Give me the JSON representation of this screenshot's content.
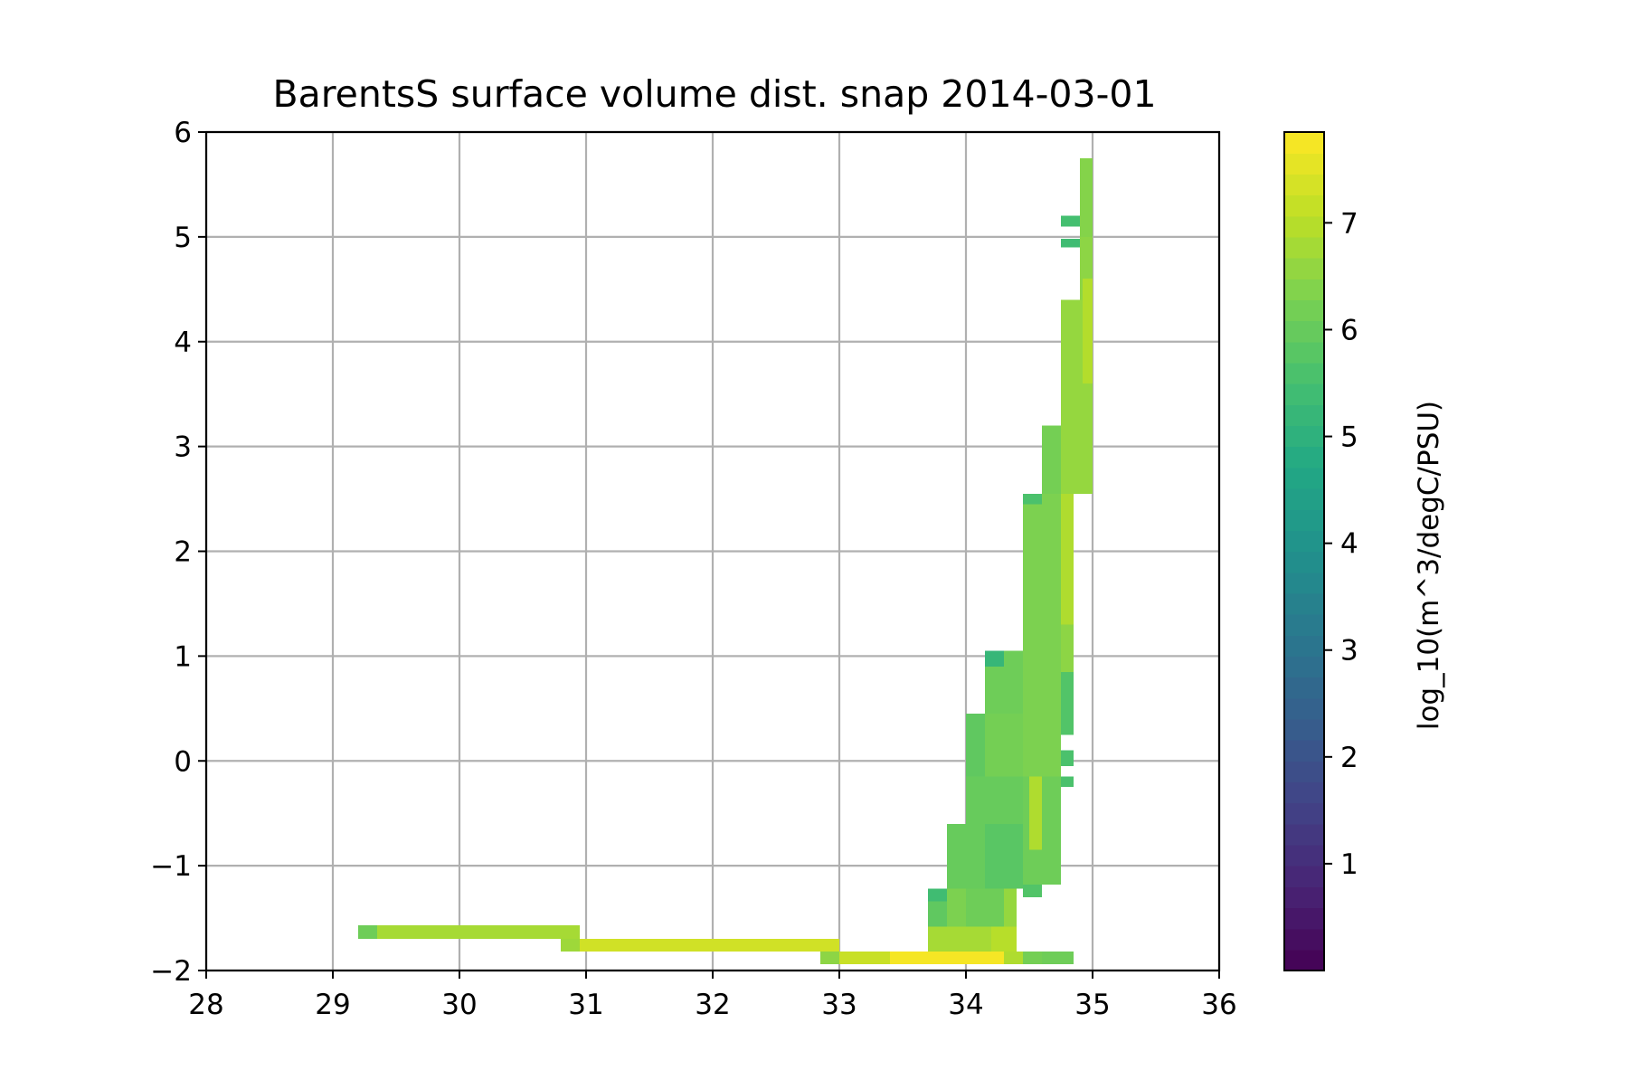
{
  "chart_data": {
    "type": "heatmap",
    "title": "BarentsS surface volume dist. snap 2014-03-01",
    "xlabel": "",
    "ylabel": "",
    "xlim": [
      28,
      36
    ],
    "ylim": [
      -2,
      6
    ],
    "x_ticks": [
      28,
      29,
      30,
      31,
      32,
      33,
      34,
      35,
      36
    ],
    "x_tick_labels": [
      "28",
      "29",
      "30",
      "31",
      "32",
      "33",
      "34",
      "35",
      "36"
    ],
    "y_ticks": [
      -2,
      -1,
      0,
      1,
      2,
      3,
      4,
      5,
      6
    ],
    "y_tick_labels": [
      "−2",
      "−1",
      "0",
      "1",
      "2",
      "3",
      "4",
      "5",
      "6"
    ],
    "grid": true,
    "grid_color": "#b0b0b0",
    "colormap": "viridis",
    "colorbar": {
      "label": "log_10(m^3/degC/PSU)",
      "range": [
        0,
        7.85
      ],
      "ticks": [
        1,
        2,
        3,
        4,
        5,
        6,
        7
      ],
      "tick_labels": [
        "1",
        "2",
        "3",
        "4",
        "5",
        "6",
        "7"
      ]
    },
    "cells": [
      {
        "s": [
          29.2,
          29.35
        ],
        "t": [
          -1.7,
          -1.57
        ],
        "v": 6.1
      },
      {
        "s": [
          29.35,
          30.95
        ],
        "t": [
          -1.7,
          -1.57
        ],
        "v": 6.8
      },
      {
        "s": [
          30.8,
          30.95
        ],
        "t": [
          -1.82,
          -1.7
        ],
        "v": 6.7
      },
      {
        "s": [
          30.95,
          33.0
        ],
        "t": [
          -1.82,
          -1.7
        ],
        "v": 7.3
      },
      {
        "s": [
          32.85,
          33.0
        ],
        "t": [
          -1.94,
          -1.82
        ],
        "v": 6.5
      },
      {
        "s": [
          33.0,
          33.4
        ],
        "t": [
          -1.94,
          -1.82
        ],
        "v": 7.2
      },
      {
        "s": [
          33.4,
          34.3
        ],
        "t": [
          -1.94,
          -1.82
        ],
        "v": 7.75
      },
      {
        "s": [
          34.3,
          34.45
        ],
        "t": [
          -1.94,
          -1.82
        ],
        "v": 6.9
      },
      {
        "s": [
          34.45,
          34.6
        ],
        "t": [
          -1.94,
          -1.82
        ],
        "v": 6.2
      },
      {
        "s": [
          34.6,
          34.85
        ],
        "t": [
          -1.94,
          -1.82
        ],
        "v": 6.1
      },
      {
        "s": [
          33.7,
          34.4
        ],
        "t": [
          -1.82,
          -1.58
        ],
        "v": 6.8
      },
      {
        "s": [
          34.2,
          34.4
        ],
        "t": [
          -1.82,
          -1.58
        ],
        "v": 7.0
      },
      {
        "s": [
          33.7,
          33.85
        ],
        "t": [
          -1.58,
          -1.22
        ],
        "v": 5.9
      },
      {
        "s": [
          33.85,
          34.0
        ],
        "t": [
          -1.58,
          -1.22
        ],
        "v": 6.3
      },
      {
        "s": [
          34.0,
          34.3
        ],
        "t": [
          -1.58,
          -1.22
        ],
        "v": 6.1
      },
      {
        "s": [
          34.3,
          34.4
        ],
        "t": [
          -1.58,
          -1.22
        ],
        "v": 6.6
      },
      {
        "s": [
          33.7,
          33.85
        ],
        "t": [
          -1.34,
          -1.22
        ],
        "v": 5.4
      },
      {
        "s": [
          33.85,
          34.45
        ],
        "t": [
          -1.22,
          -0.6
        ],
        "v": 6.0
      },
      {
        "s": [
          34.15,
          34.45
        ],
        "t": [
          -1.22,
          -0.6
        ],
        "v": 5.8
      },
      {
        "s": [
          34.45,
          34.6
        ],
        "t": [
          -1.3,
          -1.18
        ],
        "v": 5.7
      },
      {
        "s": [
          34.45,
          34.75
        ],
        "t": [
          -1.18,
          -0.15
        ],
        "v": 6.1
      },
      {
        "s": [
          34.5,
          34.6
        ],
        "t": [
          -0.85,
          -0.15
        ],
        "v": 6.9
      },
      {
        "s": [
          34.0,
          34.45
        ],
        "t": [
          -0.6,
          -0.15
        ],
        "v": 6.0
      },
      {
        "s": [
          34.0,
          34.15
        ],
        "t": [
          -0.15,
          0.45
        ],
        "v": 5.9
      },
      {
        "s": [
          34.15,
          34.45
        ],
        "t": [
          -0.15,
          0.45
        ],
        "v": 6.2
      },
      {
        "s": [
          34.45,
          34.75
        ],
        "t": [
          -0.15,
          0.45
        ],
        "v": 6.3
      },
      {
        "s": [
          34.15,
          34.45
        ],
        "t": [
          0.45,
          1.05
        ],
        "v": 6.1
      },
      {
        "s": [
          34.15,
          34.3
        ],
        "t": [
          0.9,
          1.05
        ],
        "v": 5.2
      },
      {
        "s": [
          34.45,
          34.75
        ],
        "t": [
          0.45,
          1.3
        ],
        "v": 6.3
      },
      {
        "s": [
          34.75,
          34.85
        ],
        "t": [
          -0.25,
          -0.15
        ],
        "v": 5.6
      },
      {
        "s": [
          34.75,
          34.85
        ],
        "t": [
          -0.05,
          0.1
        ],
        "v": 5.6
      },
      {
        "s": [
          34.75,
          34.85
        ],
        "t": [
          0.25,
          0.85
        ],
        "v": 5.7
      },
      {
        "s": [
          34.75,
          34.85
        ],
        "t": [
          0.85,
          1.3
        ],
        "v": 6.5
      },
      {
        "s": [
          34.45,
          34.75
        ],
        "t": [
          1.3,
          2.55
        ],
        "v": 6.3
      },
      {
        "s": [
          34.75,
          34.85
        ],
        "t": [
          1.3,
          2.55
        ],
        "v": 6.9
      },
      {
        "s": [
          34.45,
          34.6
        ],
        "t": [
          2.45,
          2.55
        ],
        "v": 5.6
      },
      {
        "s": [
          34.6,
          34.75
        ],
        "t": [
          2.55,
          3.2
        ],
        "v": 6.2
      },
      {
        "s": [
          34.75,
          34.9
        ],
        "t": [
          2.55,
          4.4
        ],
        "v": 6.6
      },
      {
        "s": [
          34.9,
          35.0
        ],
        "t": [
          2.55,
          4.4
        ],
        "v": 6.6
      },
      {
        "s": [
          34.9,
          35.0
        ],
        "t": [
          4.4,
          5.0
        ],
        "v": 6.5
      },
      {
        "s": [
          34.92,
          35.0
        ],
        "t": [
          3.6,
          4.6
        ],
        "v": 6.95
      },
      {
        "s": [
          34.75,
          34.9
        ],
        "t": [
          4.9,
          4.98
        ],
        "v": 5.4
      },
      {
        "s": [
          34.75,
          34.9
        ],
        "t": [
          5.1,
          5.2
        ],
        "v": 5.5
      },
      {
        "s": [
          34.9,
          35.0
        ],
        "t": [
          5.0,
          5.75
        ],
        "v": 6.4
      }
    ]
  }
}
